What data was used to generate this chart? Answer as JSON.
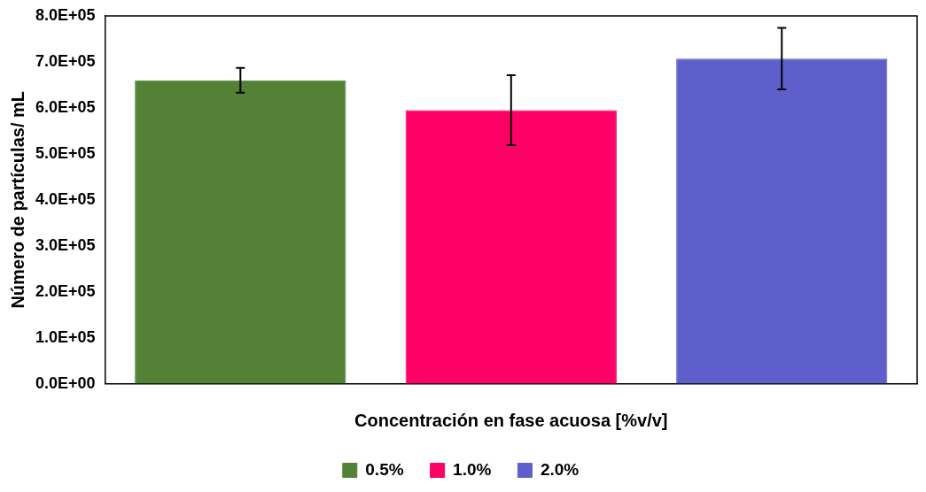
{
  "chart_data": {
    "type": "bar",
    "xlabel": "Concentración en fase acuosa [%v/v]",
    "ylabel": "Número de partículas/ mL",
    "categories": [
      null,
      null,
      null
    ],
    "series": [
      {
        "name": "0.5%",
        "color": "#538135",
        "values": [
          660000,
          null,
          null
        ],
        "errors": [
          27000,
          null,
          null
        ]
      },
      {
        "name": "1.0%",
        "color": "#ff0066",
        "values": [
          null,
          595000,
          null
        ],
        "errors": [
          null,
          76000,
          null
        ]
      },
      {
        "name": "2.0%",
        "color": "#5f5fcb",
        "values": [
          null,
          null,
          707000
        ],
        "errors": [
          null,
          null,
          67000
        ]
      }
    ],
    "ylim": [
      0,
      800000
    ],
    "yticks": [
      {
        "value": 0,
        "label": "0.0E+00"
      },
      {
        "value": 100000,
        "label": "1.0E+05"
      },
      {
        "value": 200000,
        "label": "2.0E+05"
      },
      {
        "value": 300000,
        "label": "3.0E+05"
      },
      {
        "value": 400000,
        "label": "4.0E+05"
      },
      {
        "value": 500000,
        "label": "5.0E+05"
      },
      {
        "value": 600000,
        "label": "6.0E+05"
      },
      {
        "value": 700000,
        "label": "7.0E+05"
      },
      {
        "value": 800000,
        "label": "8.0E+05"
      }
    ],
    "grid": false,
    "legend": "bottom"
  }
}
